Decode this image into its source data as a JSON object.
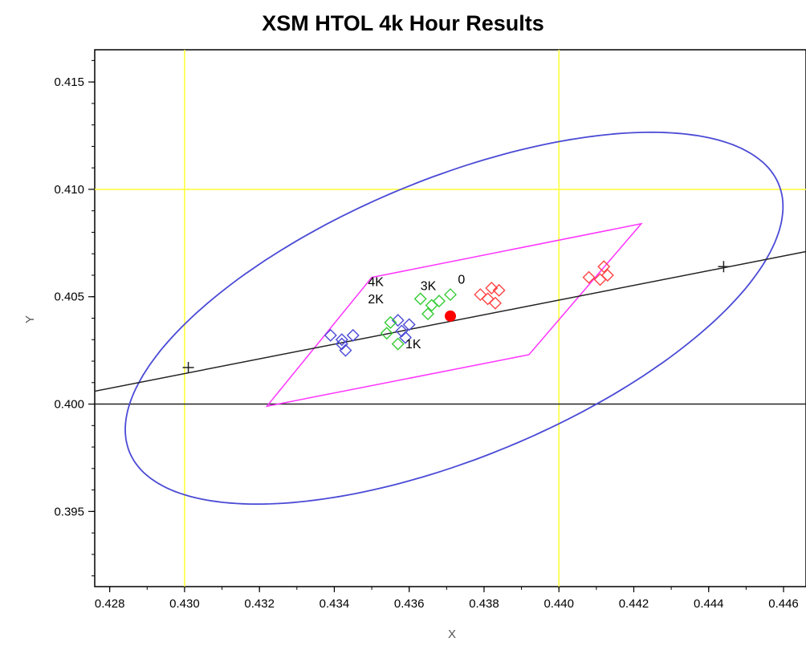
{
  "chart_data": {
    "type": "scatter",
    "title": "XSM HTOL 4k Hour Results",
    "xlabel": "X",
    "ylabel": "Y",
    "xlim": [
      0.4276,
      0.4466
    ],
    "ylim": [
      0.3915,
      0.4165
    ],
    "x_ticks": [
      "0.428",
      "0.430",
      "0.432",
      "0.434",
      "0.436",
      "0.438",
      "0.440",
      "0.442",
      "0.444",
      "0.446"
    ],
    "y_ticks": [
      "0.395",
      "0.400",
      "0.405",
      "0.410",
      "0.415"
    ],
    "colors": {
      "ellipse": "#4a4ad6",
      "quad": "#ff33ff",
      "locus": "#222222",
      "reference": "#ffff33",
      "baseline": "#222222",
      "center": "#ff0000",
      "series_blue": "#4a4ad6",
      "series_green": "#33cc33",
      "series_red": "#ff4444"
    },
    "reference_lines": {
      "x": [
        0.43,
        0.44
      ],
      "y": [
        0.41
      ]
    },
    "baseline_y": 0.4,
    "ellipse": {
      "cx": 0.4372,
      "cy": 0.404,
      "a": 0.01103,
      "b": 0.00552,
      "angle_deg": 44.3
    },
    "quadrilateral": [
      {
        "x": 0.4322,
        "y": 0.3999
      },
      {
        "x": 0.435,
        "y": 0.4059
      },
      {
        "x": 0.4422,
        "y": 0.4084
      },
      {
        "x": 0.4392,
        "y": 0.4023
      }
    ],
    "locus_line": [
      {
        "x": 0.4276,
        "y": 0.4006
      },
      {
        "x": 0.4466,
        "y": 0.4071
      }
    ],
    "locus_markers": [
      {
        "x": 0.4301,
        "y": 0.4017
      },
      {
        "x": 0.4444,
        "y": 0.4064
      }
    ],
    "center_point": {
      "x": 0.4371,
      "y": 0.4041
    },
    "series": [
      {
        "color_key": "series_blue",
        "points": [
          {
            "x": 0.4339,
            "y": 0.4032
          },
          {
            "x": 0.4342,
            "y": 0.403
          },
          {
            "x": 0.4345,
            "y": 0.4032
          },
          {
            "x": 0.4342,
            "y": 0.4028
          },
          {
            "x": 0.4343,
            "y": 0.4025
          },
          {
            "x": 0.4357,
            "y": 0.4039
          },
          {
            "x": 0.436,
            "y": 0.4037
          },
          {
            "x": 0.4358,
            "y": 0.4034
          },
          {
            "x": 0.4359,
            "y": 0.4031
          }
        ]
      },
      {
        "color_key": "series_green",
        "points": [
          {
            "x": 0.4355,
            "y": 0.4038
          },
          {
            "x": 0.4354,
            "y": 0.4033
          },
          {
            "x": 0.4357,
            "y": 0.4028
          },
          {
            "x": 0.4363,
            "y": 0.4049
          },
          {
            "x": 0.4366,
            "y": 0.4046
          },
          {
            "x": 0.4368,
            "y": 0.4048
          },
          {
            "x": 0.4365,
            "y": 0.4042
          },
          {
            "x": 0.4371,
            "y": 0.4051
          }
        ]
      },
      {
        "color_key": "series_red",
        "points": [
          {
            "x": 0.4379,
            "y": 0.4051
          },
          {
            "x": 0.4382,
            "y": 0.4054
          },
          {
            "x": 0.4381,
            "y": 0.4049
          },
          {
            "x": 0.4384,
            "y": 0.4053
          },
          {
            "x": 0.4383,
            "y": 0.4047
          },
          {
            "x": 0.4408,
            "y": 0.4059
          },
          {
            "x": 0.4411,
            "y": 0.4058
          },
          {
            "x": 0.4413,
            "y": 0.406
          },
          {
            "x": 0.4412,
            "y": 0.4064
          }
        ]
      }
    ],
    "annotations": [
      {
        "text": "4K",
        "x": 0.4349,
        "y": 0.4055
      },
      {
        "text": "3K",
        "x": 0.4363,
        "y": 0.4053
      },
      {
        "text": "0",
        "x": 0.4373,
        "y": 0.4056
      },
      {
        "text": "2K",
        "x": 0.4349,
        "y": 0.4047
      },
      {
        "text": "1K",
        "x": 0.4359,
        "y": 0.4026
      }
    ]
  }
}
